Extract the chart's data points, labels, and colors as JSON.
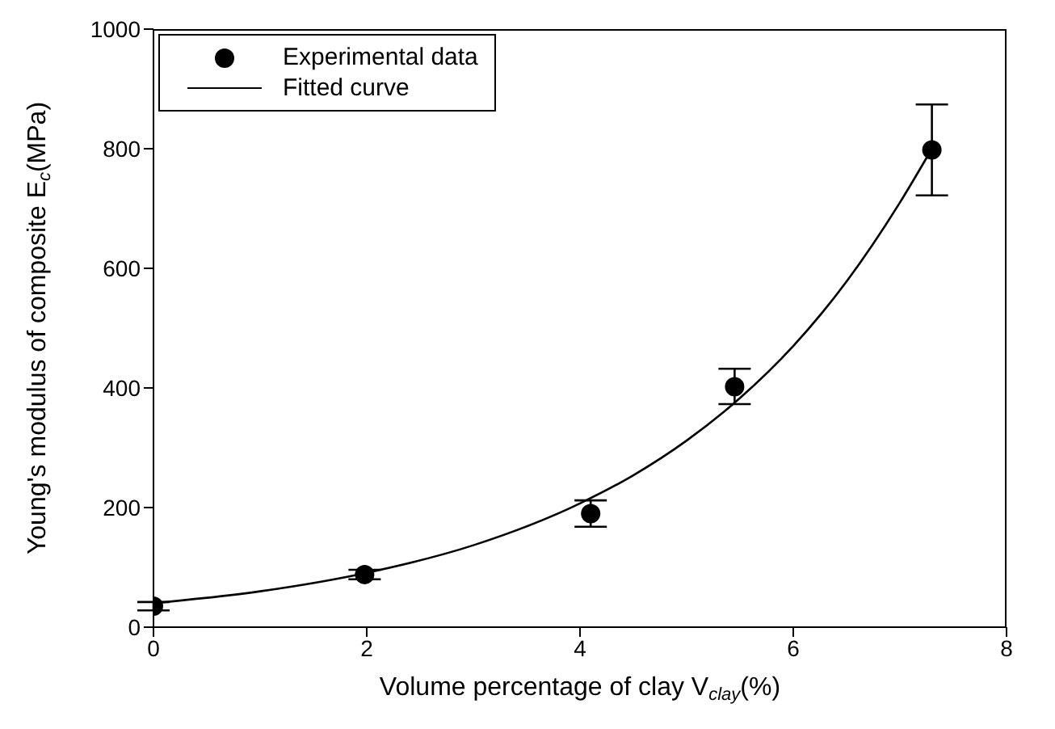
{
  "chart_data": {
    "type": "scatter",
    "xlabel": "Volume percentage of clay V$_{clay}$(%)",
    "ylabel": "Young's modulus of composite E$_{c}$(MPa)",
    "xlim": [
      0,
      8
    ],
    "xticks": [
      0,
      2,
      4,
      6,
      8
    ],
    "ylim": [
      0,
      1000
    ],
    "yticks": [
      0,
      200,
      400,
      600,
      800,
      1000
    ],
    "grid": false,
    "legend": "top left",
    "series": [
      {
        "name": "Experimental data",
        "marker": "circle",
        "color": "#000000",
        "x": [
          0,
          1.98,
          4.1,
          5.45,
          7.3
        ],
        "values": [
          35,
          88,
          190,
          402,
          798
        ],
        "errors": [
          [
            28,
            42
          ],
          [
            80,
            96
          ],
          [
            168,
            212
          ],
          [
            373,
            432
          ],
          [
            722,
            874
          ]
        ]
      },
      {
        "name": "Fitted curve",
        "type": "line",
        "marker": "none",
        "line_style": "solid",
        "color": "#000000",
        "x": [
          0,
          1,
          2,
          3,
          4,
          4.5,
          5,
          5.5,
          6,
          6.5,
          7,
          7.3
        ],
        "values": [
          40,
          60,
          91,
          137,
          207,
          254,
          312,
          383,
          470,
          578,
          710,
          800
        ]
      }
    ]
  }
}
